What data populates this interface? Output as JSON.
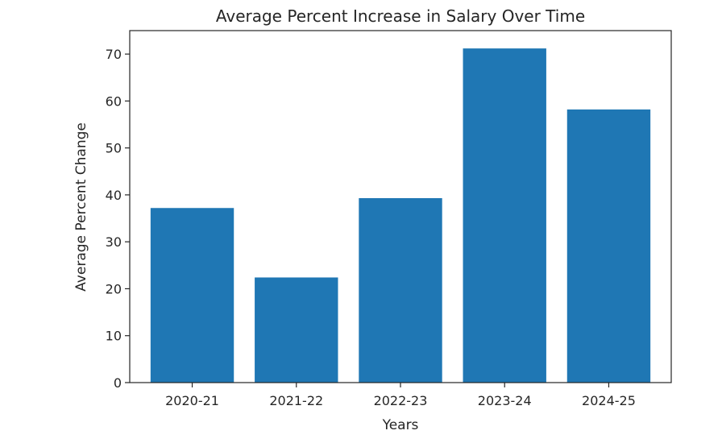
{
  "chart_data": {
    "type": "bar",
    "title": "Average Percent Increase in Salary Over Time",
    "xlabel": "Years",
    "ylabel": "Average Percent Change",
    "categories": [
      "2020-21",
      "2021-22",
      "2022-23",
      "2023-24",
      "2024-25"
    ],
    "values": [
      37.2,
      22.4,
      39.3,
      71.2,
      58.2
    ],
    "ylim": [
      0,
      75
    ],
    "yticks": [
      0,
      10,
      20,
      30,
      40,
      50,
      60,
      70
    ],
    "grid": false,
    "bar_color": "#1f77b4"
  }
}
